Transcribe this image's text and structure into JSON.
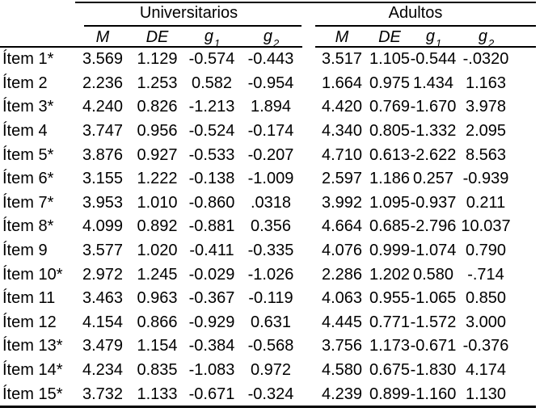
{
  "colors": {
    "background": "#ffffff",
    "text": "#000000",
    "rule": "#000000"
  },
  "table": {
    "groups": [
      {
        "label": "Universitarios"
      },
      {
        "label": "Adultos"
      }
    ],
    "headers": {
      "m": "M",
      "de": "DE",
      "g": "g",
      "sub1": "1",
      "sub2": "2"
    },
    "rows": [
      {
        "item": "Ítem 1*",
        "u": [
          "3.569",
          "1.129",
          "-0.574",
          "-0.443"
        ],
        "a": [
          "3.517",
          "1.105",
          "-0.544",
          "-.0320"
        ]
      },
      {
        "item": "Ítem 2",
        "u": [
          "2.236",
          "1.253",
          "0.582",
          "-0.954"
        ],
        "a": [
          "1.664",
          "0.975",
          "1.434",
          "1.163"
        ]
      },
      {
        "item": "Ítem 3*",
        "u": [
          "4.240",
          "0.826",
          "-1.213",
          "1.894"
        ],
        "a": [
          "4.420",
          "0.769",
          "-1.670",
          "3.978"
        ]
      },
      {
        "item": "Ítem 4",
        "u": [
          "3.747",
          "0.956",
          "-0.524",
          "-0.174"
        ],
        "a": [
          "4.340",
          "0.805",
          "-1.332",
          "2.095"
        ]
      },
      {
        "item": "Ítem 5*",
        "u": [
          "3.876",
          "0.927",
          "-0.533",
          "-0.207"
        ],
        "a": [
          "4.710",
          "0.613",
          "-2.622",
          "8.563"
        ]
      },
      {
        "item": "Ítem 6*",
        "u": [
          "3.155",
          "1.222",
          "-0.138",
          "-1.009"
        ],
        "a": [
          "2.597",
          "1.186",
          "0.257",
          "-0.939"
        ]
      },
      {
        "item": "Ítem 7*",
        "u": [
          "3.953",
          "1.010",
          "-0.860",
          ".0318"
        ],
        "a": [
          "3.992",
          "1.095",
          "-0.937",
          "0.211"
        ]
      },
      {
        "item": "Ítem 8*",
        "u": [
          "4.099",
          "0.892",
          "-0.881",
          "0.356"
        ],
        "a": [
          "4.664",
          "0.685",
          "-2.796",
          "10.037"
        ]
      },
      {
        "item": "Ítem 9",
        "u": [
          "3.577",
          "1.020",
          "-0.411",
          "-0.335"
        ],
        "a": [
          "4.076",
          "0.999",
          "-1.074",
          "0.790"
        ]
      },
      {
        "item": "Ítem 10*",
        "u": [
          "2.972",
          "1.245",
          "-0.029",
          "-1.026"
        ],
        "a": [
          "2.286",
          "1.202",
          "0.580",
          "-.714"
        ]
      },
      {
        "item": "Ítem 11",
        "u": [
          "3.463",
          "0.963",
          "-0.367",
          "-0.119"
        ],
        "a": [
          "4.063",
          "0.955",
          "-1.065",
          "0.850"
        ]
      },
      {
        "item": "Ítem 12",
        "u": [
          "4.154",
          "0.866",
          "-0.929",
          "0.631"
        ],
        "a": [
          "4.445",
          "0.771",
          "-1.572",
          "3.000"
        ]
      },
      {
        "item": "Ítem 13*",
        "u": [
          "3.479",
          "1.154",
          "-0.384",
          "-0.568"
        ],
        "a": [
          "3.756",
          "1.173",
          "-0.671",
          "-0.376"
        ]
      },
      {
        "item": "Ítem 14*",
        "u": [
          "4.234",
          "0.835",
          "-1.083",
          "0.972"
        ],
        "a": [
          "4.580",
          "0.675",
          "-1.830",
          "4.174"
        ]
      },
      {
        "item": "Ítem 15*",
        "u": [
          "3.732",
          "1.133",
          "-0.671",
          "-0.324"
        ],
        "a": [
          "4.239",
          "0.899",
          "-1.160",
          "1.130"
        ]
      }
    ]
  }
}
